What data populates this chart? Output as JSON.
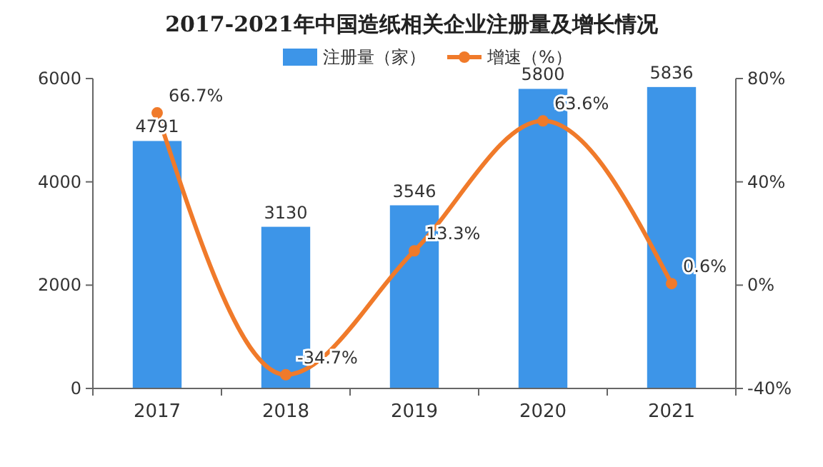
{
  "chart_data": {
    "type": "bar",
    "title": "2017-2021年中国造纸相关企业注册量及增长情况",
    "categories": [
      "2017",
      "2018",
      "2019",
      "2020",
      "2021"
    ],
    "series": [
      {
        "name": "注册量（家）",
        "color": "#3d95e8",
        "values": [
          4791,
          3130,
          3546,
          5800,
          5836
        ]
      },
      {
        "name": "增速（%）",
        "type": "line",
        "axis": "y2",
        "color": "#f07a2a",
        "values": [
          66.7,
          -34.7,
          13.3,
          63.6,
          0.6
        ],
        "value_labels": [
          "66.7%",
          "-34.7%",
          "13.3%",
          "63.6%",
          "0.6%"
        ]
      }
    ],
    "ylim": [
      0,
      6000
    ],
    "yticks": [
      0,
      2000,
      4000,
      6000
    ],
    "y2lim": [
      -40,
      80
    ],
    "y2ticks": [
      {
        "value": -40,
        "label": "-40%"
      },
      {
        "value": 0,
        "label": "0%"
      },
      {
        "value": 40,
        "label": "40%"
      },
      {
        "value": 80,
        "label": "80%"
      }
    ],
    "data_labels": true,
    "legend": "top",
    "marker": "circle",
    "line_style": "solid"
  }
}
